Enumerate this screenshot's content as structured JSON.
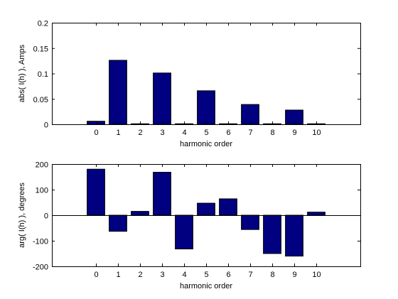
{
  "chart_data": [
    {
      "type": "bar",
      "xlabel": "harmonic order",
      "ylabel": "abs( I(h) ), Amps",
      "categories": [
        "0",
        "1",
        "2",
        "3",
        "4",
        "5",
        "6",
        "7",
        "8",
        "9",
        "10"
      ],
      "values": [
        0.006,
        0.126,
        0.001,
        0.101,
        0.001,
        0.066,
        0.001,
        0.039,
        0.001,
        0.028,
        0.001
      ],
      "xlim": [
        -2,
        12
      ],
      "ylim": [
        0,
        0.2
      ],
      "yticks": [
        "0",
        "0.05",
        "0.1",
        "0.15",
        "0.2"
      ],
      "bar_color": "#000080",
      "grid": false
    },
    {
      "type": "bar",
      "xlabel": "harmonic order",
      "ylabel": "arg( I(h) ), degrees",
      "categories": [
        "0",
        "1",
        "2",
        "3",
        "4",
        "5",
        "6",
        "7",
        "8",
        "9",
        "10"
      ],
      "values": [
        180,
        -63,
        15,
        168,
        -132,
        47,
        64,
        -56,
        -150,
        -160,
        12
      ],
      "xlim": [
        -2,
        12
      ],
      "ylim": [
        -200,
        200
      ],
      "yticks": [
        "-200",
        "-100",
        "0",
        "100",
        "200"
      ],
      "bar_color": "#000080",
      "grid": false,
      "zero_line": true
    }
  ]
}
